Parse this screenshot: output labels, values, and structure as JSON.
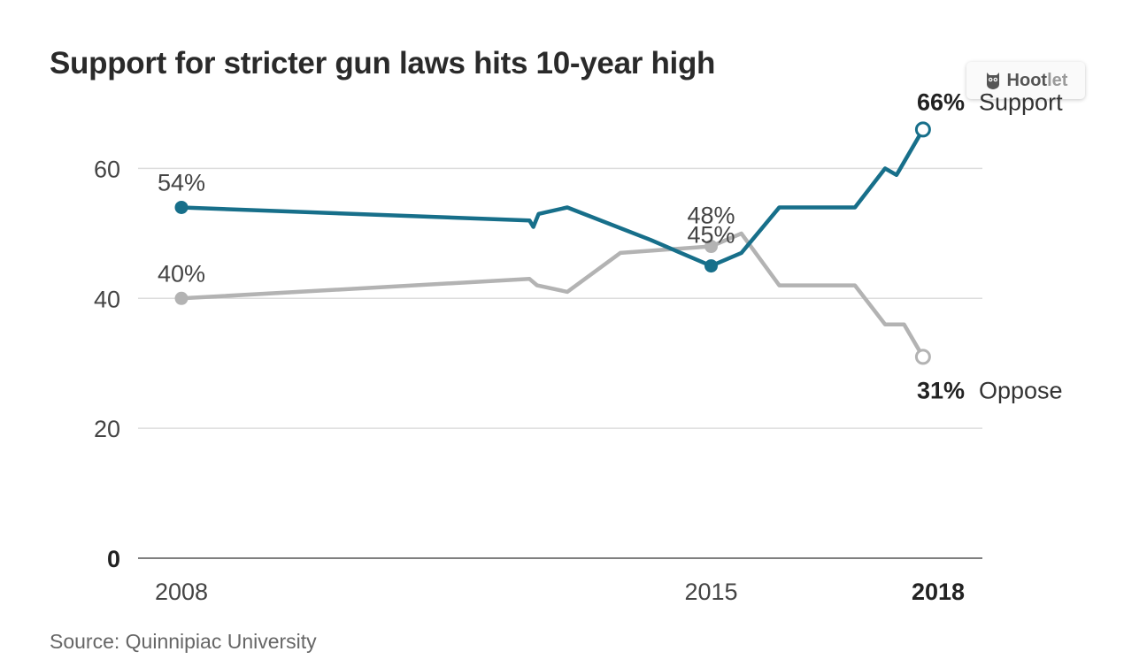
{
  "title": "Support for stricter gun laws hits 10-year high",
  "source": "Source: Quinnipiac University",
  "hootlet": {
    "label_bold": "Hoot",
    "label_light": "let",
    "icon": "owl-icon"
  },
  "colors": {
    "support": "#176f8a",
    "oppose": "#b3b3b3",
    "grid": "#dddddd",
    "axis": "#555555",
    "text": "#333333"
  },
  "chart_data": {
    "type": "line",
    "ylim": [
      0,
      70
    ],
    "yticks": [
      {
        "value": 0,
        "label": "0",
        "bold": true
      },
      {
        "value": 20,
        "label": "20"
      },
      {
        "value": 40,
        "label": "40"
      },
      {
        "value": 60,
        "label": "60"
      }
    ],
    "xlim": [
      2008,
      2018.3
    ],
    "xticks": [
      {
        "value": 2008,
        "label": "2008"
      },
      {
        "value": 2015,
        "label": "2015"
      },
      {
        "value": 2018,
        "label": "2018",
        "bold": true
      }
    ],
    "grid": true,
    "series": [
      {
        "name": "Support",
        "key": "support",
        "points": [
          [
            2008,
            54
          ],
          [
            2012.6,
            52
          ],
          [
            2012.65,
            51
          ],
          [
            2012.72,
            53
          ],
          [
            2013.1,
            54
          ],
          [
            2014.2,
            49
          ],
          [
            2015.0,
            45
          ],
          [
            2015.4,
            47
          ],
          [
            2015.9,
            54
          ],
          [
            2016.9,
            54
          ],
          [
            2017.3,
            60
          ],
          [
            2017.45,
            59
          ],
          [
            2017.8,
            66
          ]
        ],
        "labels": [
          {
            "x": 2008,
            "y": 54,
            "text": "54%"
          },
          {
            "x": 2015.0,
            "y": 45,
            "text": "45%"
          }
        ],
        "end": {
          "value_label": "66%",
          "name_label": "Support"
        }
      },
      {
        "name": "Oppose",
        "key": "oppose",
        "points": [
          [
            2008,
            40
          ],
          [
            2012.6,
            43
          ],
          [
            2012.7,
            42
          ],
          [
            2013.1,
            41
          ],
          [
            2013.8,
            47
          ],
          [
            2015.0,
            48
          ],
          [
            2015.4,
            50
          ],
          [
            2015.9,
            42
          ],
          [
            2016.9,
            42
          ],
          [
            2017.3,
            36
          ],
          [
            2017.55,
            36
          ],
          [
            2017.8,
            31
          ]
        ],
        "labels": [
          {
            "x": 2008,
            "y": 40,
            "text": "40%"
          },
          {
            "x": 2015.0,
            "y": 48,
            "text": "48%"
          }
        ],
        "end": {
          "value_label": "31%",
          "name_label": "Oppose"
        }
      }
    ]
  }
}
